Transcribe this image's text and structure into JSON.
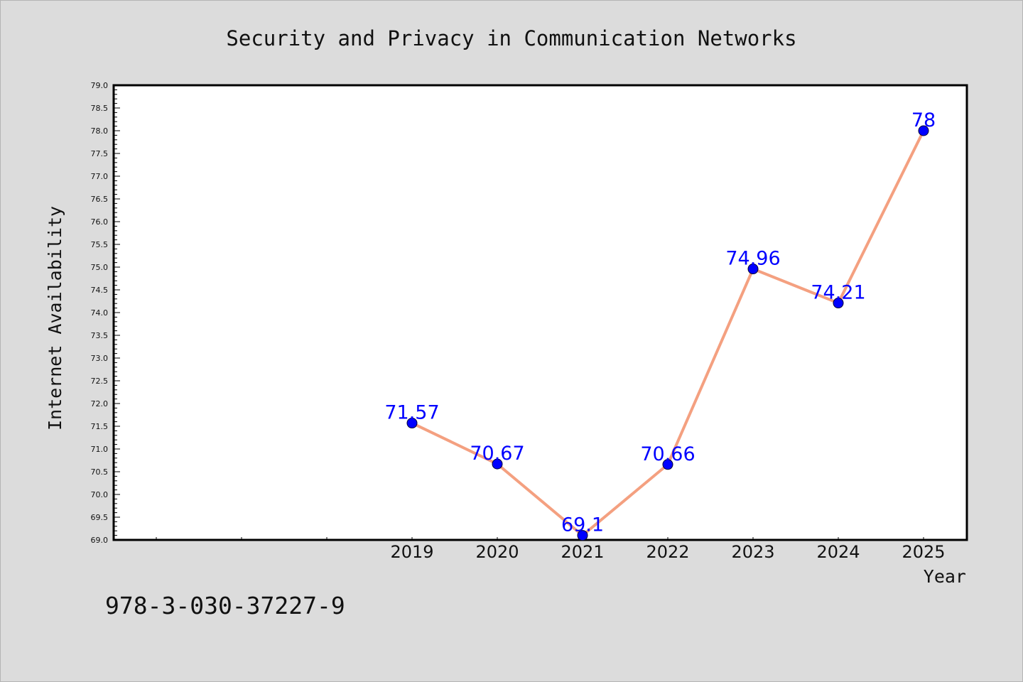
{
  "chart_data": {
    "type": "line",
    "title": "Security and Privacy in Communication Networks",
    "xlabel": "Year",
    "ylabel": "Internet Availability",
    "categories": [
      "2019",
      "2020",
      "2021",
      "2022",
      "2023",
      "2024",
      "2025"
    ],
    "series": [
      {
        "values": [
          71.57,
          70.67,
          69.1,
          70.66,
          74.96,
          74.21,
          78
        ]
      }
    ],
    "data_labels": [
      "71.57",
      "70.67",
      "69.1",
      "70.66",
      "74.96",
      "74.21",
      "78"
    ],
    "ylim": [
      69.0,
      79.0
    ],
    "y_major_step": 0.5,
    "y_ticks": [
      "69.0",
      "69.5",
      "70.0",
      "70.5",
      "71.0",
      "71.5",
      "72.0",
      "72.5",
      "73.0",
      "73.5",
      "74.0",
      "74.5",
      "75.0",
      "75.5",
      "76.0",
      "76.5",
      "77.0",
      "77.5",
      "78.0",
      "78.5",
      "79.0"
    ],
    "x_slots_before_data": 3,
    "grid": false,
    "legend": "none",
    "colors": {
      "line": "#f4a080",
      "marker": "#0000ff",
      "data_label": "#0000ff",
      "plot_background": "#ffffff",
      "page_background": "#dcdcdc"
    }
  },
  "footer": {
    "code": "978-3-030-37227-9"
  }
}
